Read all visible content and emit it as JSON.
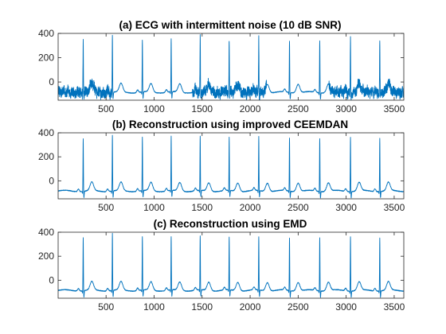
{
  "chart_data": [
    {
      "type": "line",
      "title": "(a) ECG with intermittent noise (10 dB SNR)",
      "xlim": [
        1,
        3600
      ],
      "ylim": [
        -150,
        400
      ],
      "xticks": [
        500,
        1000,
        1500,
        2000,
        2500,
        3000,
        3500
      ],
      "yticks": [
        0,
        200,
        400
      ],
      "color": "#0072BD",
      "r_peaks": {
        "x": [
          262,
          566,
          878,
          1178,
          1480,
          1782,
          2090,
          2410,
          2725,
          3045,
          3350
        ],
        "y": [
          340,
          390,
          345,
          355,
          360,
          345,
          350,
          340,
          345,
          360,
          345
        ]
      },
      "baseline": -85,
      "noise_segments": [
        [
          1,
          560
        ],
        [
          1400,
          2170
        ],
        [
          2820,
          3600
        ]
      ],
      "noise_amplitude": 40
    },
    {
      "type": "line",
      "title": "(b) Reconstruction using improved CEEMDAN",
      "xlim": [
        1,
        3600
      ],
      "ylim": [
        -150,
        400
      ],
      "xticks": [
        500,
        1000,
        1500,
        2000,
        2500,
        3000,
        3500
      ],
      "yticks": [
        0,
        200,
        400
      ],
      "color": "#0072BD",
      "r_peaks": {
        "x": [
          262,
          566,
          878,
          1178,
          1480,
          1782,
          2090,
          2410,
          2725,
          3045,
          3350
        ],
        "y": [
          360,
          385,
          365,
          370,
          372,
          365,
          368,
          360,
          362,
          375,
          365
        ]
      },
      "baseline": -85,
      "noise_segments": [],
      "noise_amplitude": 0
    },
    {
      "type": "line",
      "title": "(c) Reconstruction using EMD",
      "xlim": [
        1,
        3600
      ],
      "ylim": [
        -150,
        400
      ],
      "xticks": [
        500,
        1000,
        1500,
        2000,
        2500,
        3000,
        3500
      ],
      "yticks": [
        0,
        200,
        400
      ],
      "color": "#0072BD",
      "r_peaks": {
        "x": [
          262,
          566,
          878,
          1178,
          1480,
          1782,
          2090,
          2410,
          2725,
          3045,
          3350
        ],
        "y": [
          360,
          395,
          365,
          365,
          370,
          360,
          365,
          355,
          360,
          375,
          360
        ]
      },
      "baseline": -85,
      "noise_segments": [],
      "noise_amplitude": 0
    }
  ]
}
